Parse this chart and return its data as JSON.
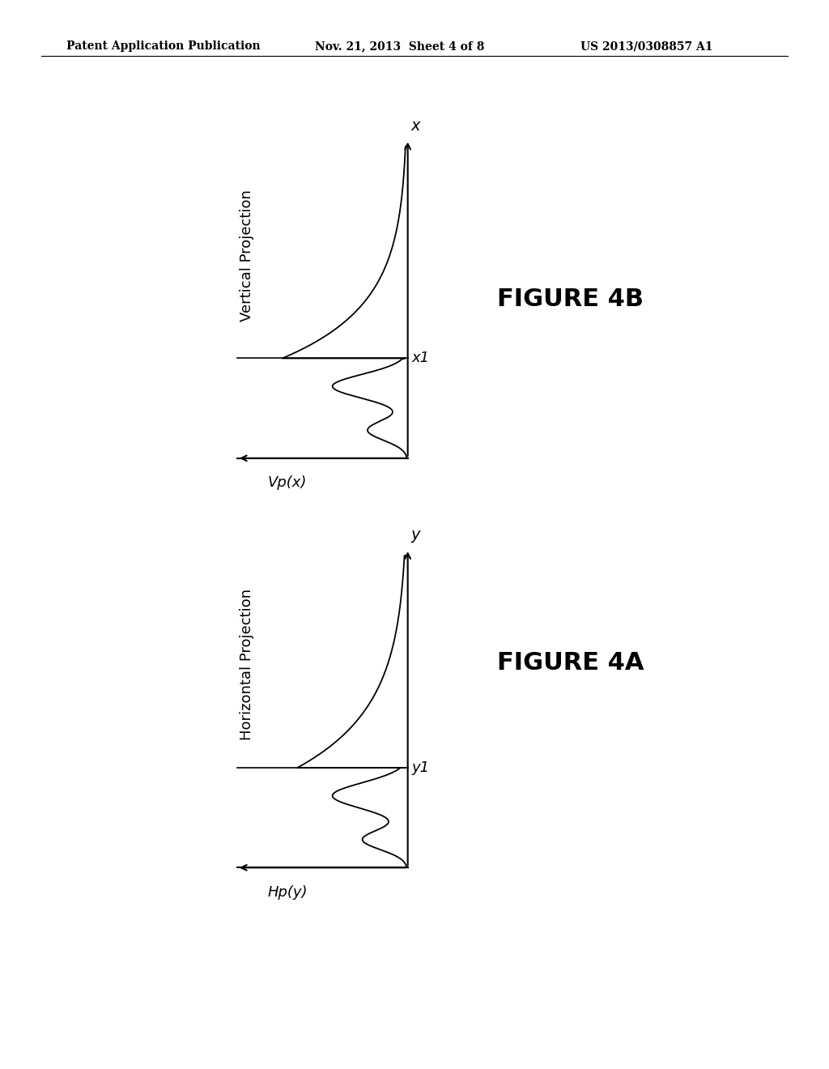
{
  "background_color": "#ffffff",
  "header_left": "Patent Application Publication",
  "header_center": "Nov. 21, 2013  Sheet 4 of 8",
  "header_right": "US 2013/0308857 A1",
  "figure_4b_label": "FIGURE 4B",
  "figure_4a_label": "FIGURE 4A",
  "fig4b_rot_label": "Vertical Projection",
  "fig4b_arrow_label": "Vp(x)",
  "fig4b_axis_top_label": "x",
  "fig4b_axis_right_label": "x1",
  "fig4a_rot_label": "Horizontal Projection",
  "fig4a_arrow_label": "Hp(y)",
  "fig4a_axis_top_label": "y",
  "fig4a_axis_right_label": "y1",
  "header_fontsize": 10,
  "label_fontsize": 13,
  "axis_label_fontsize": 14,
  "figure_label_fontsize": 22
}
